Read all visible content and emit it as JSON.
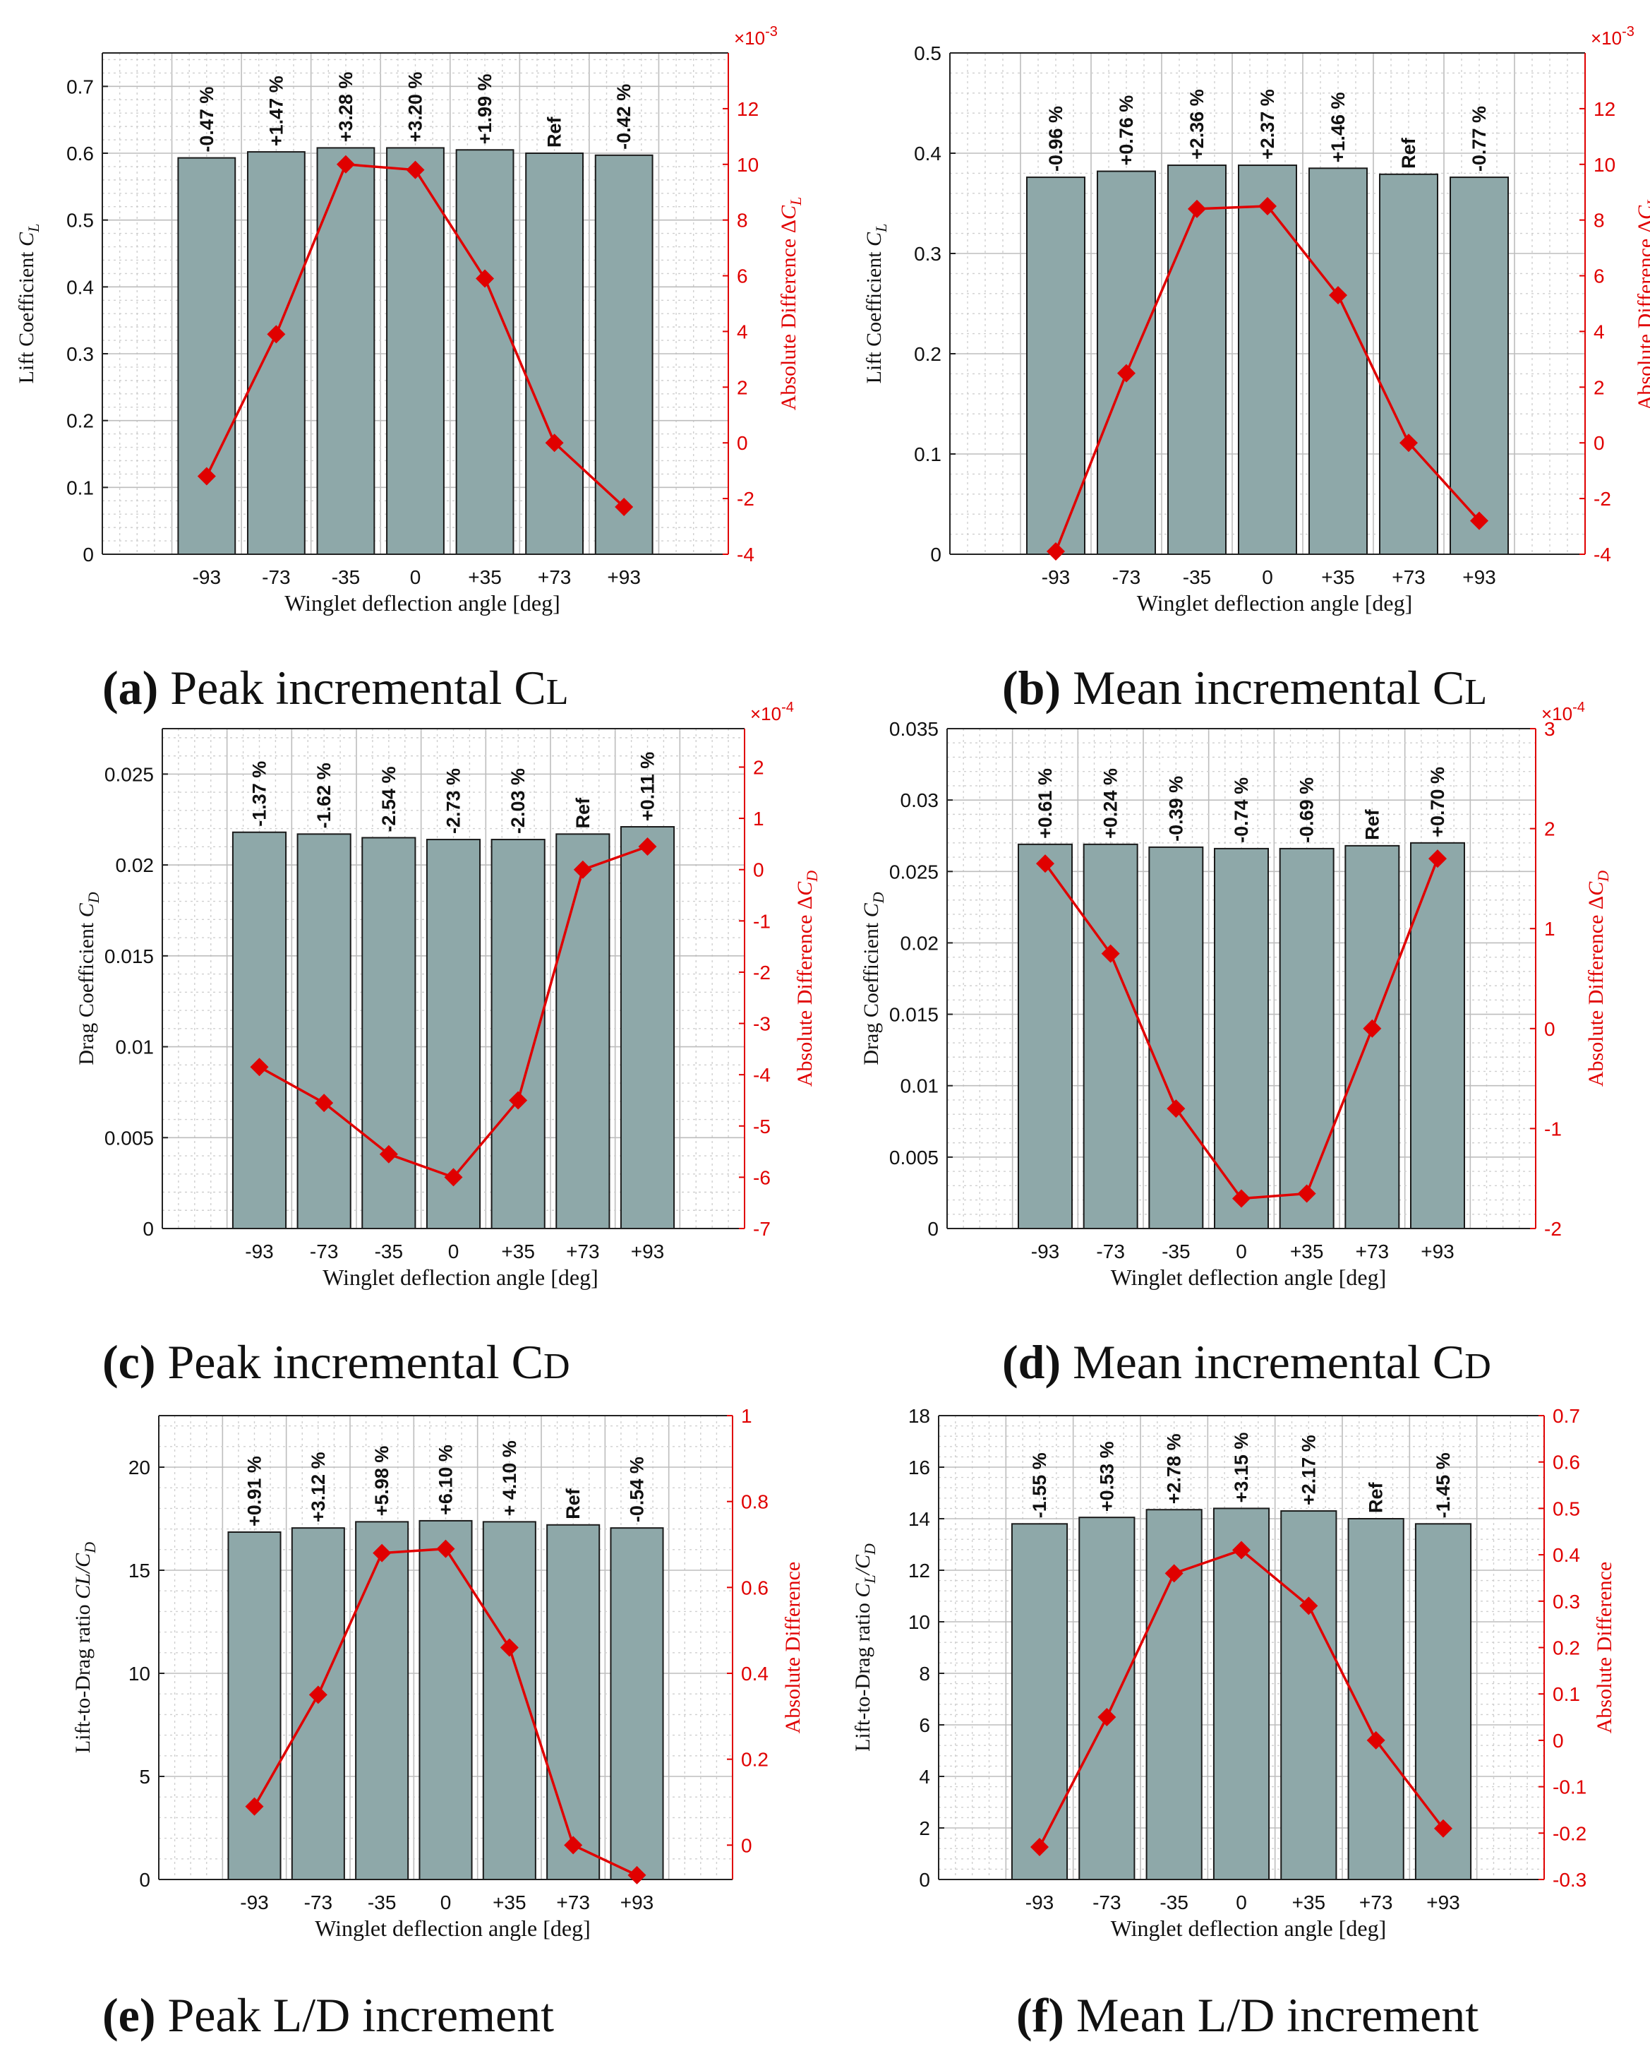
{
  "chart_data": [
    {
      "id": "a",
      "type": "bar+line",
      "categories": [
        "-93",
        "-73",
        "-35",
        "0",
        "+35",
        "+73",
        "+93"
      ],
      "left_axis": {
        "label_text": "Lift Coefficient ",
        "label_sym": "C",
        "label_sub": "L",
        "range": [
          0,
          0.75
        ],
        "ticks": [
          0,
          0.1,
          0.2,
          0.3,
          0.4,
          0.5,
          0.6,
          0.7
        ]
      },
      "right_axis": {
        "label_text": "Absolute Difference Δ",
        "label_sym": "C",
        "label_sub": "L",
        "range": [
          -4,
          14
        ],
        "ticks": [
          -4,
          -2,
          0,
          2,
          4,
          6,
          8,
          10,
          12
        ],
        "multiplier_base": "×10",
        "multiplier_exp": "-3"
      },
      "bars": [
        0.593,
        0.602,
        0.608,
        0.608,
        0.605,
        0.6,
        0.597
      ],
      "bar_labels": [
        "-0.47 %",
        "+1.47 %",
        "+3.28 %",
        "+3.20 %",
        "+1.99 %",
        "Ref",
        "-0.42 %"
      ],
      "line": [
        -1.2,
        3.9,
        10.0,
        9.8,
        5.9,
        0.0,
        -2.3
      ],
      "xlabel": "Winglet deflection angle [deg]",
      "caption_label": "(a)",
      "caption_text": " Peak incremental C",
      "caption_sub": "L"
    },
    {
      "id": "b",
      "type": "bar+line",
      "categories": [
        "-93",
        "-73",
        "-35",
        "0",
        "+35",
        "+73",
        "+93"
      ],
      "left_axis": {
        "label_text": "Lift Coefficient ",
        "label_sym": "C",
        "label_sub": "L",
        "range": [
          0,
          0.5
        ],
        "ticks": [
          0,
          0.1,
          0.2,
          0.3,
          0.4,
          0.5
        ]
      },
      "right_axis": {
        "label_text": "Absolute Difference Δ",
        "label_sym": "C",
        "label_sub": "L",
        "range": [
          -4,
          14
        ],
        "ticks": [
          -4,
          -2,
          0,
          2,
          4,
          6,
          8,
          10,
          12
        ],
        "multiplier_base": "×10",
        "multiplier_exp": "-3"
      },
      "bars": [
        0.376,
        0.382,
        0.388,
        0.388,
        0.385,
        0.379,
        0.376
      ],
      "bar_labels": [
        "-0.96 %",
        "+0.76 %",
        "+2.36 %",
        "+2.37 %",
        "+1.46 %",
        "Ref",
        "-0.77 %"
      ],
      "line": [
        -3.9,
        2.5,
        8.4,
        8.5,
        5.3,
        0.0,
        -2.8
      ],
      "xlabel": "Winglet deflection angle [deg]",
      "caption_label": "(b)",
      "caption_text": " Mean incremental C",
      "caption_sub": "L"
    },
    {
      "id": "c",
      "type": "bar+line",
      "categories": [
        "-93",
        "-73",
        "-35",
        "0",
        "+35",
        "+73",
        "+93"
      ],
      "left_axis": {
        "label_text": "Drag Coefficient ",
        "label_sym": "C",
        "label_sub": "D",
        "range": [
          0,
          0.0275
        ],
        "ticks": [
          0,
          0.005,
          0.01,
          0.015,
          0.02,
          0.025
        ]
      },
      "right_axis": {
        "label_text": "Absolute Difference Δ",
        "label_sym": "C",
        "label_sub": "D",
        "range": [
          -7,
          2.75
        ],
        "ticks": [
          -7,
          -6,
          -5,
          -4,
          -3,
          -2,
          -1,
          0,
          1,
          2
        ],
        "multiplier_base": "×10",
        "multiplier_exp": "-4"
      },
      "bars": [
        0.0218,
        0.0217,
        0.0215,
        0.0214,
        0.0214,
        0.0217,
        0.0221
      ],
      "bar_labels": [
        "-1.37 %",
        "-1.62 %",
        "-2.54 %",
        "-2.73 %",
        "-2.03 %",
        "Ref",
        "+0.11 %"
      ],
      "line": [
        -3.85,
        -4.55,
        -5.55,
        -6.0,
        -4.5,
        0.0,
        0.45
      ],
      "xlabel": "Winglet deflection angle [deg]",
      "caption_label": "(c)",
      "caption_text": " Peak incremental C",
      "caption_sub": "D"
    },
    {
      "id": "d",
      "type": "bar+line",
      "categories": [
        "-93",
        "-73",
        "-35",
        "0",
        "+35",
        "+73",
        "+93"
      ],
      "left_axis": {
        "label_text": "Drag Coefficient ",
        "label_sym": "C",
        "label_sub": "D",
        "range": [
          0,
          0.035
        ],
        "ticks": [
          0,
          0.005,
          0.01,
          0.015,
          0.02,
          0.025,
          0.03,
          0.035
        ]
      },
      "right_axis": {
        "label_text": "Absolute Difference Δ",
        "label_sym": "C",
        "label_sub": "D",
        "range": [
          -2,
          3
        ],
        "ticks": [
          -2,
          -1,
          0,
          1,
          2,
          3
        ],
        "multiplier_base": "×10",
        "multiplier_exp": "-4"
      },
      "bars": [
        0.0269,
        0.0269,
        0.0267,
        0.0266,
        0.0266,
        0.0268,
        0.027
      ],
      "bar_labels": [
        "+0.61 %",
        "+0.24 %",
        "-0.39 %",
        "-0.74 %",
        "-0.69 %",
        "Ref",
        "+0.70 %"
      ],
      "line": [
        1.65,
        0.75,
        -0.8,
        -1.7,
        -1.65,
        0.0,
        1.7
      ],
      "xlabel": "Winglet deflection angle [deg]",
      "caption_label": "(d)",
      "caption_text": " Mean incremental C",
      "caption_sub": "D"
    },
    {
      "id": "e",
      "type": "bar+line",
      "categories": [
        "-93",
        "-73",
        "-35",
        "0",
        "+35",
        "+73",
        "+93"
      ],
      "left_axis": {
        "label_text": "Lift-to-Drag ratio ",
        "label_sym": "CL/C",
        "label_sub": "D",
        "range": [
          0,
          22.5
        ],
        "ticks": [
          0,
          5,
          10,
          15,
          20
        ]
      },
      "right_axis": {
        "label_text": "Absolute Difference",
        "label_sym": "",
        "label_sub": "",
        "range": [
          -0.08,
          1.0
        ],
        "ticks": [
          0,
          0.2,
          0.4,
          0.6,
          0.8,
          1
        ]
      },
      "bars": [
        16.85,
        17.05,
        17.35,
        17.4,
        17.35,
        17.2,
        17.05
      ],
      "bar_labels": [
        "+0.91 %",
        "+3.12 %",
        "+5.98 %",
        "+6.10 %",
        "+ 4.10 %",
        "Ref",
        "-0.54 %"
      ],
      "line": [
        0.09,
        0.35,
        0.68,
        0.69,
        0.46,
        0.0,
        -0.07
      ],
      "xlabel": "Winglet deflection angle [deg]",
      "caption_label": "(e)",
      "caption_text": " Peak L/D increment",
      "caption_sub": ""
    },
    {
      "id": "f",
      "type": "bar+line",
      "categories": [
        "-93",
        "-73",
        "-35",
        "0",
        "+35",
        "+73",
        "+93"
      ],
      "left_axis": {
        "label_text": "Lift-to-Drag ratio ",
        "label_sym": "C",
        "label_sub": "L",
        "label_tail": "/C",
        "label_sub2": "D",
        "range": [
          0,
          18
        ],
        "ticks": [
          0,
          2,
          4,
          6,
          8,
          10,
          12,
          14,
          16,
          18
        ]
      },
      "right_axis": {
        "label_text": "Absolute Difference",
        "label_sym": "",
        "label_sub": "",
        "range": [
          -0.3,
          0.7
        ],
        "ticks": [
          -0.3,
          -0.2,
          -0.1,
          0,
          0.1,
          0.2,
          0.3,
          0.4,
          0.5,
          0.6,
          0.7
        ]
      },
      "bars": [
        13.8,
        14.05,
        14.35,
        14.4,
        14.3,
        14.0,
        13.8
      ],
      "bar_labels": [
        "-1.55 %",
        "+0.53 %",
        "+2.78 %",
        "+3.15 %",
        "+2.17 %",
        "Ref",
        "-1.45 %"
      ],
      "line": [
        -0.23,
        0.05,
        0.36,
        0.41,
        0.29,
        0.0,
        -0.19
      ],
      "xlabel": "Winglet deflection angle [deg]",
      "caption_label": "(f)",
      "caption_text": " Mean L/D increment",
      "caption_sub": ""
    }
  ]
}
